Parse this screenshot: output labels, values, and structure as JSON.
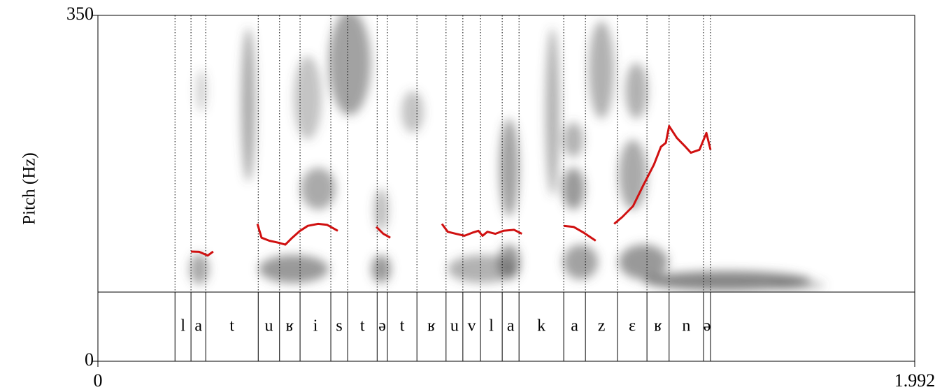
{
  "chart_data": {
    "type": "pitch-textgrid",
    "ylabel": "Pitch (Hz)",
    "xlim": [
      0,
      1.992
    ],
    "xticks": [
      0,
      1.992
    ],
    "ylim": [
      0,
      350
    ],
    "yticks": [
      0,
      350
    ],
    "color": "#d01010",
    "x": [
      0.227,
      0.247,
      0.268,
      0.281,
      null,
      0.389,
      0.399,
      0.418,
      0.44,
      0.457,
      0.474,
      0.493,
      0.512,
      0.537,
      0.559,
      0.585,
      null,
      0.679,
      0.696,
      0.713,
      null,
      0.839,
      0.853,
      0.873,
      0.894,
      0.913,
      0.928,
      0.938,
      0.95,
      0.969,
      0.989,
      1.015,
      1.034,
      null,
      1.136,
      1.16,
      1.185,
      1.214,
      null,
      1.259,
      1.279,
      1.305,
      1.33,
      1.356,
      1.373,
      1.385,
      1.393,
      1.412,
      1.433,
      1.446,
      1.467,
      1.484,
      1.494
    ],
    "values": [
      111,
      110.7,
      107,
      111,
      null,
      139,
      125,
      122,
      120,
      118,
      125,
      132,
      137,
      139,
      138,
      132,
      null,
      136,
      129,
      125,
      null,
      139,
      131,
      129,
      127,
      130,
      132,
      127,
      131,
      129,
      132,
      133,
      129,
      null,
      137,
      136,
      130,
      122,
      null,
      139,
      146,
      157,
      178,
      199,
      217,
      221,
      238,
      226,
      217,
      211,
      214,
      231,
      214
    ],
    "boundaries": [
      0.188,
      0.227,
      0.263,
      0.391,
      0.443,
      0.493,
      0.568,
      0.609,
      0.681,
      0.706,
      0.778,
      0.849,
      0.89,
      0.933,
      0.986,
      1.027,
      1.136,
      1.189,
      1.267,
      1.339,
      1.393,
      1.477,
      1.494
    ],
    "labels": [
      "l",
      "a",
      "t",
      "u",
      "ʁ",
      "i",
      "s",
      "t",
      "ə",
      "t",
      "ʁ",
      "u",
      "v",
      "l",
      "a",
      "k",
      "a",
      "z",
      "ɛ",
      "ʁ",
      "n",
      "ə"
    ]
  }
}
